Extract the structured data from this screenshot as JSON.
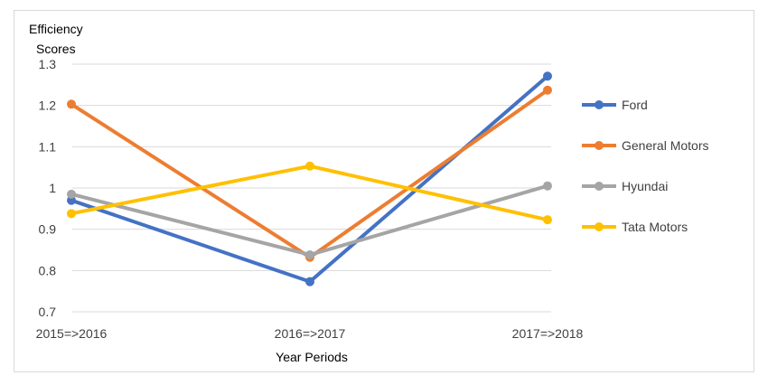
{
  "chart_data": {
    "type": "line",
    "title": "",
    "ylabel_line1": "Efficiency",
    "ylabel_line2": "Scores",
    "xlabel": "Year Periods",
    "categories": [
      "2015=>2016",
      "2016=>2017",
      "2017=>2018"
    ],
    "ylim": [
      0.7,
      1.3
    ],
    "yticks": [
      0.7,
      0.8,
      0.9,
      1,
      1.1,
      1.2,
      1.3
    ],
    "ytick_labels": [
      "0.7",
      "0.8",
      "0.9",
      "1",
      "1.1",
      "1.2",
      "1.3"
    ],
    "grid": true,
    "legend_position": "right",
    "series": [
      {
        "name": "Ford",
        "color": "#4472c4",
        "values": [
          0.97,
          0.773,
          1.271
        ]
      },
      {
        "name": "General Motors",
        "color": "#ed7d31",
        "values": [
          1.203,
          0.832,
          1.237
        ]
      },
      {
        "name": "Hyundai",
        "color": "#a5a5a5",
        "values": [
          0.985,
          0.838,
          1.005
        ]
      },
      {
        "name": "Tata Motors",
        "color": "#ffc000",
        "values": [
          0.938,
          1.053,
          0.923
        ]
      }
    ]
  }
}
